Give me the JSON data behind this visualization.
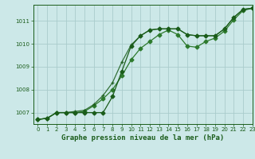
{
  "title": "Graphe pression niveau de la mer (hPa)",
  "background_color": "#cce8e8",
  "grid_color": "#aacccc",
  "line_color_dark": "#1a5c1a",
  "line_color_mid": "#2d7a2d",
  "xlim": [
    -0.5,
    23
  ],
  "ylim": [
    1006.5,
    1011.7
  ],
  "yticks": [
    1007,
    1008,
    1009,
    1010,
    1011
  ],
  "xticks": [
    0,
    1,
    2,
    3,
    4,
    5,
    6,
    7,
    8,
    9,
    10,
    11,
    12,
    13,
    14,
    15,
    16,
    17,
    18,
    19,
    20,
    21,
    22,
    23
  ],
  "series1_x": [
    0,
    1,
    2,
    3,
    4,
    5,
    6,
    7,
    8,
    9,
    10,
    11,
    12,
    13,
    14,
    15,
    16,
    17,
    18,
    19,
    20,
    21,
    22,
    23
  ],
  "series1_y": [
    1006.7,
    1006.75,
    1007.0,
    1007.0,
    1007.0,
    1007.0,
    1007.0,
    1007.0,
    1007.7,
    1008.8,
    1009.9,
    1010.35,
    1010.6,
    1010.65,
    1010.65,
    1010.65,
    1010.4,
    1010.35,
    1010.35,
    1010.35,
    1010.65,
    1011.15,
    1011.5,
    1011.55
  ],
  "series2_x": [
    0,
    1,
    2,
    3,
    4,
    5,
    6,
    7,
    8,
    9,
    10,
    11,
    12,
    13,
    14,
    15,
    16,
    17,
    18,
    19,
    20,
    21,
    22,
    23
  ],
  "series2_y": [
    1006.7,
    1006.75,
    1007.0,
    1007.0,
    1007.0,
    1007.05,
    1007.3,
    1007.6,
    1008.0,
    1008.6,
    1009.3,
    1009.8,
    1010.1,
    1010.4,
    1010.6,
    1010.4,
    1009.9,
    1009.85,
    1010.1,
    1010.25,
    1010.55,
    1011.05,
    1011.45,
    1011.55
  ],
  "series3_x": [
    0,
    1,
    2,
    3,
    4,
    5,
    6,
    7,
    8,
    9,
    10,
    11,
    12,
    13,
    14,
    15,
    16,
    17,
    18,
    19,
    20,
    21,
    22,
    23
  ],
  "series3_y": [
    1006.7,
    1006.75,
    1007.0,
    1007.0,
    1007.05,
    1007.1,
    1007.35,
    1007.75,
    1008.3,
    1009.2,
    1009.95,
    1010.35,
    1010.6,
    1010.65,
    1010.65,
    1010.65,
    1010.4,
    1010.35,
    1010.35,
    1010.35,
    1010.65,
    1011.15,
    1011.5,
    1011.55
  ],
  "xlabel_fontsize": 6.5,
  "tick_fontsize": 5,
  "marker_size": 2.5,
  "linewidth": 0.9
}
